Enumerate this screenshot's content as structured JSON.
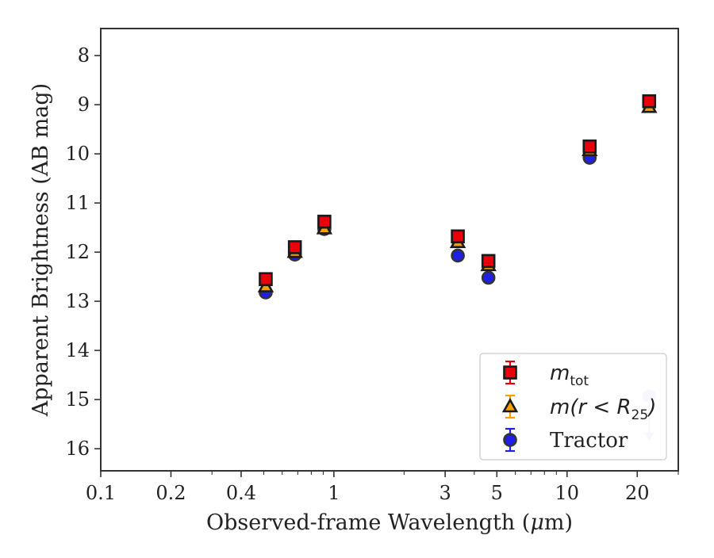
{
  "chart_data": {
    "type": "scatter",
    "title": "",
    "xlabel_prefix": "Observed-frame Wavelength (",
    "xlabel_mu": "μ",
    "xlabel_suffix": "m)",
    "ylabel": "Apparent Brightness (AB mag)",
    "xscale": "log",
    "xlim": [
      0.1,
      30
    ],
    "ylim": [
      16.45,
      7.45
    ],
    "y_inverted": true,
    "grid": false,
    "legend_position": "lower right",
    "x_ticks": [
      {
        "value": 0.1,
        "label": "0.1"
      },
      {
        "value": 0.2,
        "label": "0.2"
      },
      {
        "value": 0.4,
        "label": "0.4"
      },
      {
        "value": 1,
        "label": "1"
      },
      {
        "value": 3,
        "label": "3"
      },
      {
        "value": 5,
        "label": "5"
      },
      {
        "value": 10,
        "label": "10"
      },
      {
        "value": 20,
        "label": "20"
      }
    ],
    "y_ticks": [
      {
        "value": 8,
        "label": "8"
      },
      {
        "value": 9,
        "label": "9"
      },
      {
        "value": 10,
        "label": "10"
      },
      {
        "value": 11,
        "label": "11"
      },
      {
        "value": 12,
        "label": "12"
      },
      {
        "value": 13,
        "label": "13"
      },
      {
        "value": 14,
        "label": "14"
      },
      {
        "value": 15,
        "label": "15"
      },
      {
        "value": 16,
        "label": "16"
      }
    ],
    "series": [
      {
        "name": "m_tot",
        "legend_main": "m",
        "legend_sub": "tot",
        "marker": "square",
        "color": "#e8000b",
        "edge_color": "#1a1a1a",
        "errorbar_color": "#e8000b",
        "points": [
          {
            "x": 0.51,
            "y": 12.55
          },
          {
            "x": 0.68,
            "y": 11.9
          },
          {
            "x": 0.91,
            "y": 11.38
          },
          {
            "x": 3.4,
            "y": 11.68
          },
          {
            "x": 4.6,
            "y": 12.18
          },
          {
            "x": 12.5,
            "y": 9.85
          },
          {
            "x": 22.5,
            "y": 8.93
          }
        ]
      },
      {
        "name": "m(r < R_25)",
        "legend_main": "m(r < R",
        "legend_sub": "25",
        "legend_tail": ")",
        "marker": "triangle",
        "color": "#f5a000",
        "edge_color": "#1a1a1a",
        "errorbar_color": "#f5a000",
        "points": [
          {
            "x": 0.51,
            "y": 12.7
          },
          {
            "x": 0.68,
            "y": 12.0
          },
          {
            "x": 0.91,
            "y": 11.52
          },
          {
            "x": 3.4,
            "y": 11.8
          },
          {
            "x": 4.6,
            "y": 12.27
          },
          {
            "x": 12.5,
            "y": 9.93
          },
          {
            "x": 22.5,
            "y": 9.05
          }
        ]
      },
      {
        "name": "Tractor",
        "legend_main": "Tractor",
        "marker": "circle",
        "color": "#1f1fe6",
        "edge_color": "#333333",
        "errorbar_color": "#1f1fe6",
        "points": [
          {
            "x": 0.51,
            "y": 12.82
          },
          {
            "x": 0.68,
            "y": 12.05
          },
          {
            "x": 0.91,
            "y": 11.53
          },
          {
            "x": 3.4,
            "y": 12.07
          },
          {
            "x": 4.6,
            "y": 12.52
          },
          {
            "x": 12.5,
            "y": 10.08
          }
        ],
        "upper_limits": [
          {
            "x": 22.5,
            "y": 14.93,
            "arrow_to": 15.8,
            "color": "#c6c8f5"
          }
        ]
      }
    ]
  }
}
